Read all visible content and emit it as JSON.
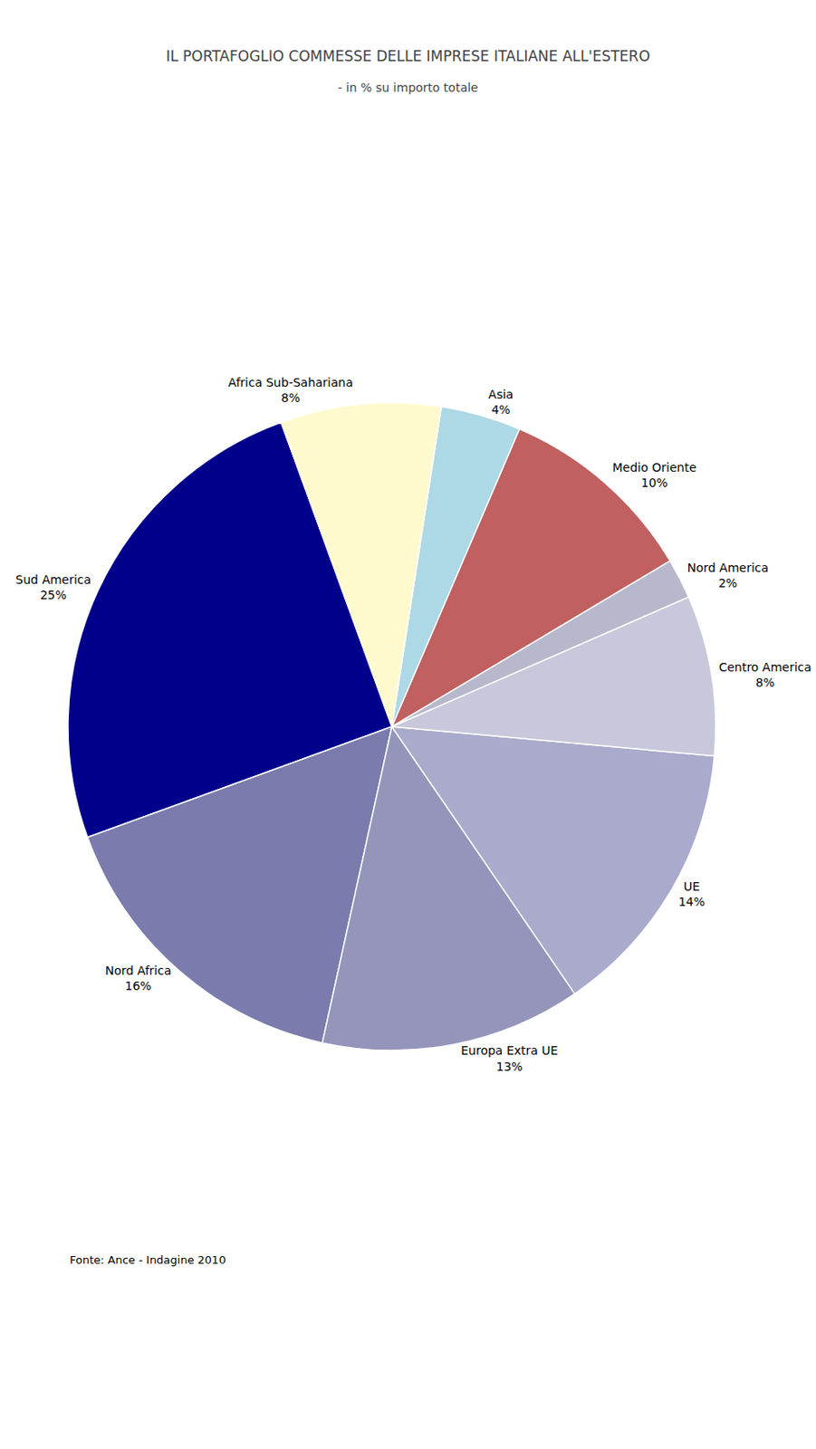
{
  "chart_data": {
    "type": "pie",
    "title": "IL PORTAFOGLIO COMMESSE DELLE IMPRESE ITALIANE ALL'ESTERO",
    "subtitle": "- in % su importo totale",
    "categories": [
      "Sud America",
      "Nord Africa",
      "Europa Extra UE",
      "UE",
      "Centro America",
      "Nord America",
      "Medio Oriente",
      "Asia",
      "Africa Sub-Sahariana"
    ],
    "values": [
      25,
      16,
      13,
      14,
      8,
      2,
      10,
      4,
      8
    ],
    "value_labels": [
      "25%",
      "16%",
      "13%",
      "14%",
      "8%",
      "2%",
      "10%",
      "4%",
      "8%"
    ],
    "colors": [
      "#00008B",
      "#7B7BAD",
      "#9595BB",
      "#AAAACC",
      "#C8C8DC",
      "#B8B8CC",
      "#C06060",
      "#ADD8E6",
      "#FFFACD"
    ],
    "data_labels": true,
    "annotations": [
      "Fonte: Ance - Indagine 2010"
    ]
  }
}
